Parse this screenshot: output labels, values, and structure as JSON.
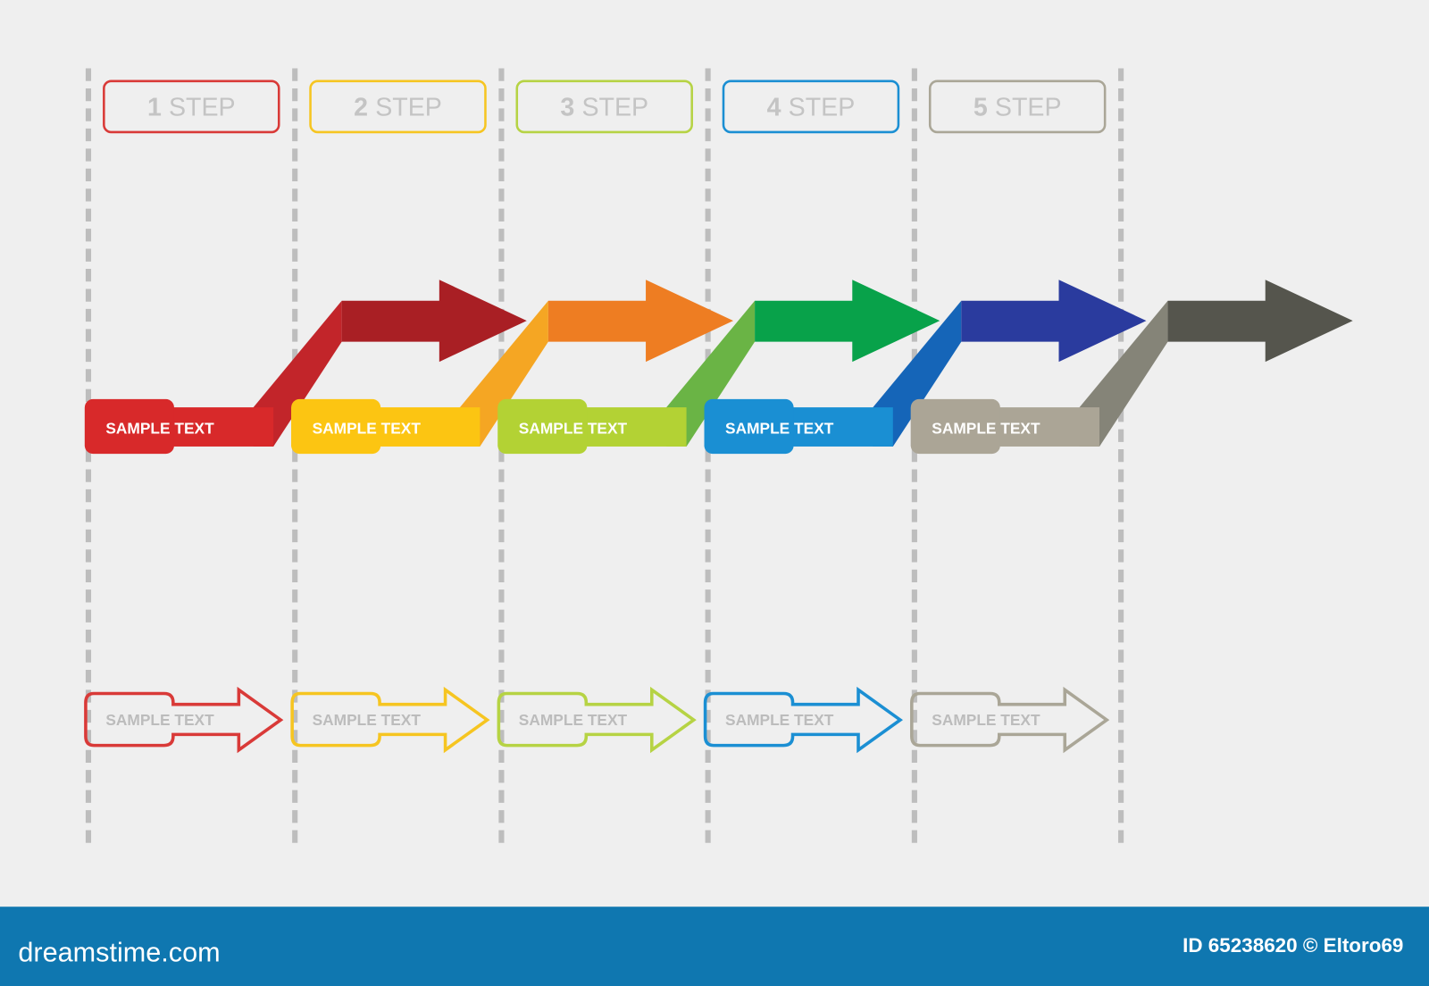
{
  "steps": [
    {
      "number": "1",
      "label": "STEP",
      "band_text": "SAMPLE TEXT",
      "outline_text": "SAMPLE TEXT",
      "colors": {
        "box": "#d93a38",
        "band": "#d8292a",
        "diagonal": "#c2252a",
        "arrow": "#a91f24"
      }
    },
    {
      "number": "2",
      "label": "STEP",
      "band_text": "SAMPLE TEXT",
      "outline_text": "SAMPLE TEXT",
      "colors": {
        "box": "#f6c521",
        "band": "#fcc512",
        "diagonal": "#f5a623",
        "arrow": "#ee7d22"
      }
    },
    {
      "number": "3",
      "label": "STEP",
      "band_text": "SAMPLE TEXT",
      "outline_text": "SAMPLE TEXT",
      "colors": {
        "box": "#b6d344",
        "band": "#b3d234",
        "diagonal": "#6ab445",
        "arrow": "#08a24a"
      }
    },
    {
      "number": "4",
      "label": "STEP",
      "band_text": "SAMPLE TEXT",
      "outline_text": "SAMPLE TEXT",
      "colors": {
        "box": "#1b8fd3",
        "band": "#1a8fd3",
        "diagonal": "#1565b8",
        "arrow": "#2a3b9e"
      }
    },
    {
      "number": "5",
      "label": "STEP",
      "band_text": "SAMPLE TEXT",
      "outline_text": "SAMPLE TEXT",
      "colors": {
        "box": "#aaa697",
        "band": "#aba596",
        "diagonal": "#858478",
        "arrow": "#55554d"
      }
    }
  ],
  "colors": {
    "background": "#efefef",
    "divider": "#bdbdbd",
    "step_text": "#c4c4c4",
    "outline_text": "#bcbcbc",
    "footer": "#0f77b0"
  },
  "footer": {
    "brand": "dreamstime.com",
    "credit": "ID 65238620 © Eltoro69"
  }
}
